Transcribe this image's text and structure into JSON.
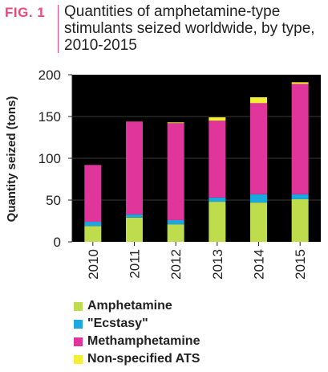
{
  "figure": {
    "label": "FIG. 1"
  },
  "chart_data": {
    "type": "bar",
    "stacked": true,
    "title": "Quantities of amphetamine-type stimulants seized worldwide, by type, 2010-2015",
    "xlabel": "",
    "ylabel": "Quantity seized (tons)",
    "ylim": [
      0,
      200
    ],
    "yticks": [
      "0",
      "50",
      "100",
      "150",
      "200"
    ],
    "categories": [
      "2010",
      "2011",
      "2012",
      "2013",
      "2014",
      "2015"
    ],
    "series": [
      {
        "name": "Amphetamine",
        "color": "#bfdc4c",
        "values": [
          19,
          29,
          21,
          48,
          47,
          51
        ]
      },
      {
        "name": "\"Ecstasy\"",
        "color": "#1ba8e0",
        "values": [
          5,
          4,
          5,
          5,
          10,
          6
        ]
      },
      {
        "name": "Methamphetamine",
        "color": "#e0359b",
        "values": [
          68,
          111,
          116,
          92,
          109,
          132
        ]
      },
      {
        "name": "Non-specified ATS",
        "color": "#f5ee36",
        "values": [
          0,
          0,
          1,
          4,
          7,
          2
        ]
      }
    ],
    "grid": true,
    "plot_background": "#000000",
    "legend_position": "bottom"
  }
}
